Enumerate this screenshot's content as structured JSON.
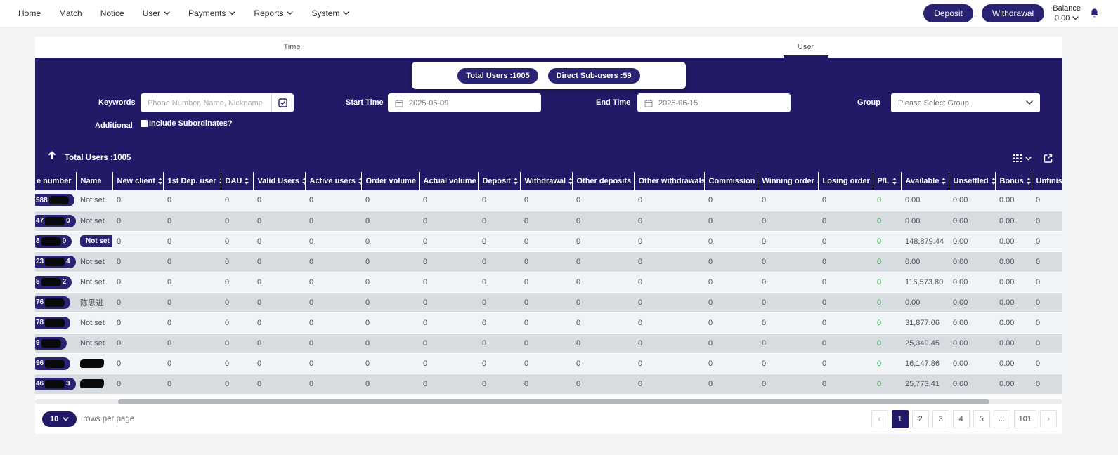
{
  "navbar": {
    "items": [
      {
        "label": "Home",
        "dropdown": false
      },
      {
        "label": "Match",
        "dropdown": false
      },
      {
        "label": "Notice",
        "dropdown": false
      },
      {
        "label": "User",
        "dropdown": true
      },
      {
        "label": "Payments",
        "dropdown": true
      },
      {
        "label": "Reports",
        "dropdown": true
      },
      {
        "label": "System",
        "dropdown": true
      }
    ],
    "deposit_label": "Deposit",
    "withdrawal_label": "Withdrawal",
    "balance_label": "Balance",
    "balance_value": "0.00",
    "icons": [
      "bell-icon",
      "chevron-down-icon"
    ]
  },
  "tabs": {
    "time_label": "Time",
    "user_label": "User",
    "active": "User"
  },
  "stats": {
    "total_users_badge": "Total Users :1005",
    "direct_sub_users_badge": "Direct Sub-users :59"
  },
  "filters": {
    "keywords_label": "Keywords",
    "keywords_placeholder": "Phone Number, Name, Nickname",
    "keywords_icon": "check-square-icon",
    "start_time_label": "Start Time",
    "start_time_value": "2025-06-09",
    "end_time_label": "End Time",
    "end_time_value": "2025-06-15",
    "group_label": "Group",
    "group_value": "Please Select Group",
    "additional_label": "Additional",
    "include_subordinates_label": "Include Subordinates?",
    "include_subordinates_checked": false,
    "calendar_icon": "calendar-icon"
  },
  "table_toolbar": {
    "total_label": "Total Users :1005",
    "icons": [
      "up-arrow-icon",
      "columns-icon",
      "chevron-down-icon",
      "export-icon"
    ]
  },
  "table": {
    "columns": [
      {
        "label": "e number",
        "sortable": false
      },
      {
        "label": "Name",
        "sortable": false
      },
      {
        "label": "New client",
        "sortable": true
      },
      {
        "label": "1st Dep. user",
        "sortable": true
      },
      {
        "label": "DAU",
        "sortable": true
      },
      {
        "label": "Valid Users",
        "sortable": true
      },
      {
        "label": "Active users",
        "sortable": true
      },
      {
        "label": "Order volume",
        "sortable": true
      },
      {
        "label": "Actual volume",
        "sortable": true
      },
      {
        "label": "Deposit",
        "sortable": true
      },
      {
        "label": "Withdrawal",
        "sortable": true
      },
      {
        "label": "Other deposits",
        "sortable": true
      },
      {
        "label": "Other withdrawals",
        "sortable": true
      },
      {
        "label": "Commission",
        "sortable": true
      },
      {
        "label": "Winning order",
        "sortable": true
      },
      {
        "label": "Losing order",
        "sortable": true
      },
      {
        "label": "P/L",
        "sortable": true
      },
      {
        "label": "Available",
        "sortable": true
      },
      {
        "label": "Unsettled",
        "sortable": true
      },
      {
        "label": "Bonus",
        "sortable": true
      },
      {
        "label": "Unfinish",
        "sortable": false
      }
    ],
    "rows": [
      {
        "phone_prefix": "588",
        "phone_suffix": "",
        "name": "Not set",
        "name_style": "plain",
        "metrics": [
          "0",
          "0",
          "0",
          "0",
          "0",
          "0",
          "0",
          "0",
          "0",
          "0",
          "0",
          "0",
          "0",
          "0"
        ],
        "pl": "0",
        "available": "0.00",
        "unsettled": "0.00",
        "bonus": "0.00",
        "unfinished": "0"
      },
      {
        "phone_prefix": "47",
        "phone_suffix": "0",
        "name": "Not set",
        "name_style": "plain",
        "metrics": [
          "0",
          "0",
          "0",
          "0",
          "0",
          "0",
          "0",
          "0",
          "0",
          "0",
          "0",
          "0",
          "0",
          "0"
        ],
        "pl": "0",
        "available": "0.00",
        "unsettled": "0.00",
        "bonus": "0.00",
        "unfinished": "0"
      },
      {
        "phone_prefix": "8",
        "phone_suffix": "0",
        "name": "Not set",
        "name_style": "badge",
        "metrics": [
          "0",
          "0",
          "0",
          "0",
          "0",
          "0",
          "0",
          "0",
          "0",
          "0",
          "0",
          "0",
          "0",
          "0"
        ],
        "pl": "0",
        "available": "148,879.44",
        "unsettled": "0.00",
        "bonus": "0.00",
        "unfinished": "0"
      },
      {
        "phone_prefix": "23",
        "phone_suffix": "4",
        "name": "Not set",
        "name_style": "plain",
        "metrics": [
          "0",
          "0",
          "0",
          "0",
          "0",
          "0",
          "0",
          "0",
          "0",
          "0",
          "0",
          "0",
          "0",
          "0"
        ],
        "pl": "0",
        "available": "0.00",
        "unsettled": "0.00",
        "bonus": "0.00",
        "unfinished": "0"
      },
      {
        "phone_prefix": "5",
        "phone_suffix": "2",
        "name": "Not set",
        "name_style": "plain",
        "metrics": [
          "0",
          "0",
          "0",
          "0",
          "0",
          "0",
          "0",
          "0",
          "0",
          "0",
          "0",
          "0",
          "0",
          "0"
        ],
        "pl": "0",
        "available": "116,573.80",
        "unsettled": "0.00",
        "bonus": "0.00",
        "unfinished": "0"
      },
      {
        "phone_prefix": "76",
        "phone_suffix": "",
        "name": "陈思进",
        "name_style": "plain",
        "metrics": [
          "0",
          "0",
          "0",
          "0",
          "0",
          "0",
          "0",
          "0",
          "0",
          "0",
          "0",
          "0",
          "0",
          "0"
        ],
        "pl": "0",
        "available": "0.00",
        "unsettled": "0.00",
        "bonus": "0.00",
        "unfinished": "0"
      },
      {
        "phone_prefix": "78",
        "phone_suffix": "",
        "name": "Not set",
        "name_style": "plain",
        "metrics": [
          "0",
          "0",
          "0",
          "0",
          "0",
          "0",
          "0",
          "0",
          "0",
          "0",
          "0",
          "0",
          "0",
          "0"
        ],
        "pl": "0",
        "available": "31,877.06",
        "unsettled": "0.00",
        "bonus": "0.00",
        "unfinished": "0"
      },
      {
        "phone_prefix": "9",
        "phone_suffix": "",
        "name": "Not set",
        "name_style": "plain",
        "metrics": [
          "0",
          "0",
          "0",
          "0",
          "0",
          "0",
          "0",
          "0",
          "0",
          "0",
          "0",
          "0",
          "0",
          "0"
        ],
        "pl": "0",
        "available": "25,349.45",
        "unsettled": "0.00",
        "bonus": "0.00",
        "unfinished": "0"
      },
      {
        "phone_prefix": "96",
        "phone_suffix": "",
        "name": "",
        "name_style": "redacted",
        "metrics": [
          "0",
          "0",
          "0",
          "0",
          "0",
          "0",
          "0",
          "0",
          "0",
          "0",
          "0",
          "0",
          "0",
          "0"
        ],
        "pl": "0",
        "available": "16,147.86",
        "unsettled": "0.00",
        "bonus": "0.00",
        "unfinished": "0"
      },
      {
        "phone_prefix": "46",
        "phone_suffix": "3",
        "name": "",
        "name_style": "redacted",
        "metrics": [
          "0",
          "0",
          "0",
          "0",
          "0",
          "0",
          "0",
          "0",
          "0",
          "0",
          "0",
          "0",
          "0",
          "0"
        ],
        "pl": "0",
        "available": "25,773.41",
        "unsettled": "0.00",
        "bonus": "0.00",
        "unfinished": "0"
      }
    ]
  },
  "pagination": {
    "rows_per_page_value": "10",
    "rows_per_page_label": "rows per page",
    "prev": "‹",
    "next": "›",
    "pages": [
      "1",
      "2",
      "3",
      "4",
      "5",
      "...",
      "101"
    ],
    "active_page": "1"
  },
  "colors": {
    "navy": "#221a66",
    "navy_button": "#2a2272",
    "row_odd": "#f1f4f6",
    "row_even": "#d7dce1",
    "pl_green": "#28a745"
  }
}
